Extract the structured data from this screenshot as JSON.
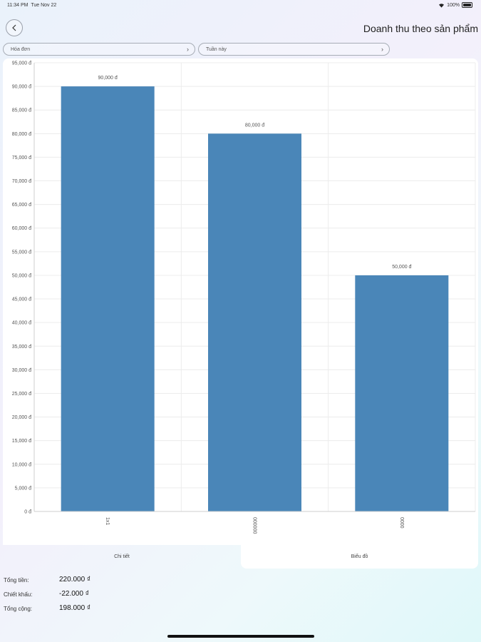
{
  "status_bar": {
    "time": "11:34 PM",
    "date": "Tue Nov 22",
    "battery": "100%"
  },
  "header": {
    "title": "Doanh thu theo sản phẩm",
    "back_icon": "chevron-left-icon"
  },
  "filters": {
    "type": {
      "value": "Hóa đơn"
    },
    "period": {
      "value": "Tuần này"
    }
  },
  "chart_data": {
    "type": "bar",
    "categories": [
      "1x1",
      "000000",
      "0000"
    ],
    "values": [
      90000,
      80000,
      50000
    ],
    "value_labels": [
      "90,000 đ",
      "80,000 đ",
      "50,000 đ"
    ],
    "ylim": [
      0,
      95000
    ],
    "ytick_step": 5000,
    "ytick_labels": [
      "0 đ",
      "5,000 đ",
      "10,000 đ",
      "15,000 đ",
      "20,000 đ",
      "25,000 đ",
      "30,000 đ",
      "35,000 đ",
      "40,000 đ",
      "45,000 đ",
      "50,000 đ",
      "55,000 đ",
      "60,000 đ",
      "65,000 đ",
      "70,000 đ",
      "75,000 đ",
      "80,000 đ",
      "85,000 đ",
      "90,000 đ",
      "95,000 đ"
    ],
    "bar_color": "#4a86b8",
    "grid": true
  },
  "tabs": [
    {
      "label": "Chi tiết"
    },
    {
      "label": "Biểu đồ"
    }
  ],
  "summary": {
    "total": {
      "label": "Tổng tiền:",
      "value": "220.000 ₫"
    },
    "discount": {
      "label": "Chiết khấu:",
      "value": "-22.000 ₫"
    },
    "grand_total": {
      "label": "Tổng cộng:",
      "value": "198.000 ₫"
    }
  }
}
